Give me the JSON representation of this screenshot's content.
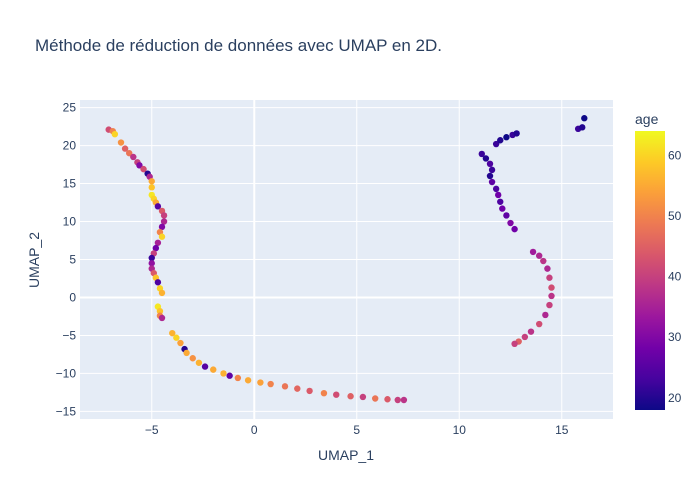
{
  "chart_data": {
    "type": "scatter",
    "title": "Méthode de réduction de données avec UMAP en 2D.",
    "xlabel": "UMAP_1",
    "ylabel": "UMAP_2",
    "xlim": [
      -8.5,
      17.5
    ],
    "ylim": [
      -16,
      26
    ],
    "xticks": [
      -5,
      0,
      5,
      10,
      15
    ],
    "yticks": [
      -15,
      -10,
      -5,
      0,
      5,
      10,
      15,
      20,
      25
    ],
    "grid": true,
    "colorbar": {
      "title": "age",
      "range": [
        18,
        64
      ],
      "ticks": [
        20,
        30,
        40,
        50,
        60
      ],
      "colorscale": [
        "#0d0887",
        "#46039f",
        "#7201a8",
        "#9c179e",
        "#bd3786",
        "#d8576b",
        "#ed7953",
        "#fb9f3a",
        "#fdca26",
        "#f0f921"
      ]
    },
    "points": [
      {
        "x": -7.1,
        "y": 22.1,
        "age": 42
      },
      {
        "x": -6.9,
        "y": 21.9,
        "age": 50
      },
      {
        "x": -6.8,
        "y": 21.5,
        "age": 60
      },
      {
        "x": -6.5,
        "y": 20.4,
        "age": 52
      },
      {
        "x": -6.3,
        "y": 19.6,
        "age": 45
      },
      {
        "x": -6.1,
        "y": 19.0,
        "age": 48
      },
      {
        "x": -5.9,
        "y": 18.5,
        "age": 38
      },
      {
        "x": -5.7,
        "y": 17.8,
        "age": 40
      },
      {
        "x": -5.6,
        "y": 17.4,
        "age": 30
      },
      {
        "x": -5.4,
        "y": 16.9,
        "age": 42
      },
      {
        "x": -5.2,
        "y": 16.3,
        "age": 20
      },
      {
        "x": -5.1,
        "y": 15.9,
        "age": 36
      },
      {
        "x": -5.0,
        "y": 15.3,
        "age": 55
      },
      {
        "x": -5.0,
        "y": 14.5,
        "age": 58
      },
      {
        "x": -5.0,
        "y": 13.5,
        "age": 62
      },
      {
        "x": -4.9,
        "y": 13.0,
        "age": 60
      },
      {
        "x": -4.8,
        "y": 12.5,
        "age": 55
      },
      {
        "x": -4.7,
        "y": 12.0,
        "age": 25
      },
      {
        "x": -4.5,
        "y": 11.4,
        "age": 44
      },
      {
        "x": -4.4,
        "y": 10.8,
        "age": 40
      },
      {
        "x": -4.4,
        "y": 10.0,
        "age": 36
      },
      {
        "x": -4.5,
        "y": 9.3,
        "age": 30
      },
      {
        "x": -4.6,
        "y": 8.6,
        "age": 50
      },
      {
        "x": -4.5,
        "y": 8.0,
        "age": 60
      },
      {
        "x": -4.7,
        "y": 7.2,
        "age": 35
      },
      {
        "x": -4.8,
        "y": 6.5,
        "age": 28
      },
      {
        "x": -4.9,
        "y": 5.8,
        "age": 40
      },
      {
        "x": -5.0,
        "y": 5.2,
        "age": 22
      },
      {
        "x": -5.0,
        "y": 4.5,
        "age": 32
      },
      {
        "x": -5.0,
        "y": 3.8,
        "age": 36
      },
      {
        "x": -4.9,
        "y": 3.2,
        "age": 44
      },
      {
        "x": -4.8,
        "y": 2.6,
        "age": 58
      },
      {
        "x": -4.7,
        "y": 2.0,
        "age": 24
      },
      {
        "x": -4.6,
        "y": 1.2,
        "age": 60
      },
      {
        "x": -4.5,
        "y": 0.6,
        "age": 56
      },
      {
        "x": -4.7,
        "y": -1.2,
        "age": 62
      },
      {
        "x": -4.6,
        "y": -1.8,
        "age": 58
      },
      {
        "x": -4.6,
        "y": -2.4,
        "age": 50
      },
      {
        "x": -4.5,
        "y": -2.7,
        "age": 36
      },
      {
        "x": -4.0,
        "y": -4.7,
        "age": 56
      },
      {
        "x": -3.8,
        "y": -5.3,
        "age": 60
      },
      {
        "x": -3.6,
        "y": -6.0,
        "age": 54
      },
      {
        "x": -3.4,
        "y": -6.8,
        "age": 20
      },
      {
        "x": -3.3,
        "y": -7.3,
        "age": 55
      },
      {
        "x": -3.0,
        "y": -8.0,
        "age": 52
      },
      {
        "x": -2.7,
        "y": -8.6,
        "age": 56
      },
      {
        "x": -2.4,
        "y": -9.1,
        "age": 25
      },
      {
        "x": -2.0,
        "y": -9.5,
        "age": 55
      },
      {
        "x": -1.5,
        "y": -10.0,
        "age": 56
      },
      {
        "x": -1.2,
        "y": -10.3,
        "age": 26
      },
      {
        "x": -0.8,
        "y": -10.6,
        "age": 50
      },
      {
        "x": -0.3,
        "y": -10.9,
        "age": 55
      },
      {
        "x": 0.3,
        "y": -11.2,
        "age": 54
      },
      {
        "x": 0.8,
        "y": -11.4,
        "age": 50
      },
      {
        "x": 1.5,
        "y": -11.7,
        "age": 48
      },
      {
        "x": 2.1,
        "y": -12.0,
        "age": 46
      },
      {
        "x": 2.7,
        "y": -12.3,
        "age": 44
      },
      {
        "x": 3.4,
        "y": -12.6,
        "age": 50
      },
      {
        "x": 4.0,
        "y": -12.8,
        "age": 42
      },
      {
        "x": 4.7,
        "y": -13.0,
        "age": 45
      },
      {
        "x": 5.3,
        "y": -13.1,
        "age": 40
      },
      {
        "x": 5.9,
        "y": -13.3,
        "age": 48
      },
      {
        "x": 6.5,
        "y": -13.4,
        "age": 44
      },
      {
        "x": 7.0,
        "y": -13.5,
        "age": 40
      },
      {
        "x": 7.3,
        "y": -13.5,
        "age": 38
      },
      {
        "x": 11.1,
        "y": 18.9,
        "age": 22
      },
      {
        "x": 11.3,
        "y": 18.3,
        "age": 20
      },
      {
        "x": 11.5,
        "y": 17.6,
        "age": 24
      },
      {
        "x": 11.6,
        "y": 16.8,
        "age": 22
      },
      {
        "x": 11.5,
        "y": 16.0,
        "age": 20
      },
      {
        "x": 11.6,
        "y": 15.2,
        "age": 26
      },
      {
        "x": 11.8,
        "y": 14.3,
        "age": 24
      },
      {
        "x": 11.9,
        "y": 13.5,
        "age": 28
      },
      {
        "x": 12.0,
        "y": 12.6,
        "age": 24
      },
      {
        "x": 12.1,
        "y": 11.7,
        "age": 28
      },
      {
        "x": 12.3,
        "y": 10.8,
        "age": 26
      },
      {
        "x": 12.5,
        "y": 9.8,
        "age": 30
      },
      {
        "x": 12.7,
        "y": 9.0,
        "age": 28
      },
      {
        "x": 11.8,
        "y": 20.2,
        "age": 22
      },
      {
        "x": 12.0,
        "y": 20.7,
        "age": 20
      },
      {
        "x": 12.3,
        "y": 21.1,
        "age": 18
      },
      {
        "x": 12.6,
        "y": 21.4,
        "age": 22
      },
      {
        "x": 12.8,
        "y": 21.6,
        "age": 20
      },
      {
        "x": 15.8,
        "y": 22.2,
        "age": 22
      },
      {
        "x": 16.0,
        "y": 22.4,
        "age": 20
      },
      {
        "x": 16.1,
        "y": 23.6,
        "age": 18
      },
      {
        "x": 13.6,
        "y": 6.0,
        "age": 34
      },
      {
        "x": 13.9,
        "y": 5.5,
        "age": 36
      },
      {
        "x": 14.1,
        "y": 4.8,
        "age": 38
      },
      {
        "x": 14.3,
        "y": 3.8,
        "age": 36
      },
      {
        "x": 14.4,
        "y": 2.6,
        "age": 40
      },
      {
        "x": 14.5,
        "y": 1.3,
        "age": 42
      },
      {
        "x": 14.5,
        "y": 0.2,
        "age": 38
      },
      {
        "x": 14.4,
        "y": -1.0,
        "age": 40
      },
      {
        "x": 14.2,
        "y": -2.3,
        "age": 36
      },
      {
        "x": 13.9,
        "y": -3.5,
        "age": 42
      },
      {
        "x": 13.5,
        "y": -4.5,
        "age": 38
      },
      {
        "x": 13.2,
        "y": -5.2,
        "age": 40
      },
      {
        "x": 12.9,
        "y": -5.8,
        "age": 45
      },
      {
        "x": 12.7,
        "y": -6.1,
        "age": 40
      }
    ]
  }
}
